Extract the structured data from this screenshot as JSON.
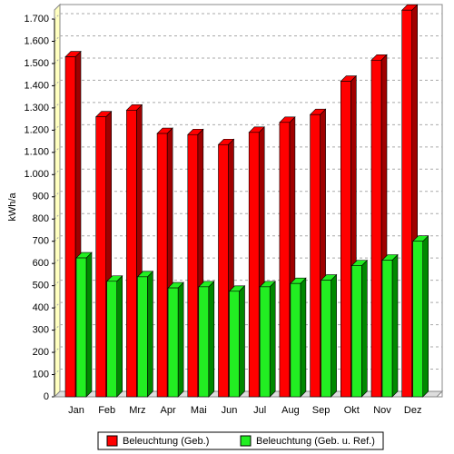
{
  "chart_data": {
    "type": "bar3d",
    "y_label": "kWh/a",
    "categories": [
      "Jan",
      "Feb",
      "Mrz",
      "Apr",
      "Mai",
      "Jun",
      "Jul",
      "Aug",
      "Sep",
      "Okt",
      "Nov",
      "Dez"
    ],
    "series": [
      {
        "name": "Beleuchtung (Geb.)",
        "color": "#ff0000",
        "side_color": "#a00000",
        "values": [
          1530,
          1260,
          1290,
          1185,
          1180,
          1135,
          1190,
          1235,
          1270,
          1420,
          1515,
          1740
        ]
      },
      {
        "name": "Beleuchtung (Geb. u. Ref.)",
        "color": "#22ee22",
        "side_color": "#008800",
        "values": [
          625,
          520,
          540,
          490,
          495,
          475,
          495,
          510,
          525,
          590,
          615,
          700
        ]
      }
    ],
    "ylim": [
      0,
      1700
    ],
    "yticks": [
      0,
      100,
      200,
      300,
      400,
      500,
      600,
      700,
      800,
      900,
      {
        "value": 1000,
        "label": "1.000"
      },
      {
        "value": 1100,
        "label": "1.100"
      },
      {
        "value": 1200,
        "label": "1.200"
      },
      {
        "value": 1300,
        "label": "1.300"
      },
      {
        "value": 1400,
        "label": "1.400"
      },
      {
        "value": 1500,
        "label": "1.500"
      },
      {
        "value": 1600,
        "label": "1.600"
      },
      {
        "value": 1700,
        "label": "1.700"
      }
    ],
    "grid": true,
    "legend": "bottom"
  }
}
